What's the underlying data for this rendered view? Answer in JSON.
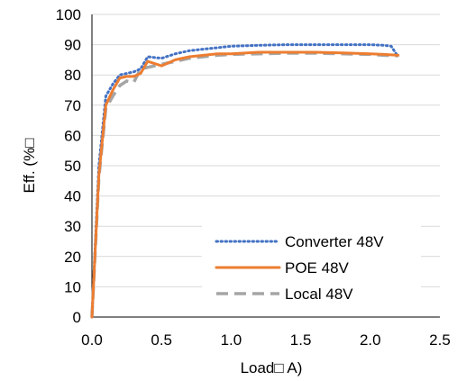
{
  "chart_data": {
    "type": "line",
    "title": "",
    "xlabel": "Load□ A)",
    "ylabel": "Eff. (%□",
    "xlim": [
      0,
      2.5
    ],
    "ylim": [
      0,
      100
    ],
    "x_ticks": [
      0,
      0.5,
      1.0,
      1.5,
      2.0,
      2.5
    ],
    "x_tick_labels": [
      "0.0",
      "0.5",
      "1.0",
      "1.5",
      "2.0",
      "2.5"
    ],
    "y_ticks": [
      0,
      10,
      20,
      30,
      40,
      50,
      60,
      70,
      80,
      90,
      100
    ],
    "y_tick_labels": [
      "0",
      "10",
      "20",
      "30",
      "40",
      "50",
      "60",
      "70",
      "80",
      "90",
      "100"
    ],
    "grid": "horizontal",
    "legend_position": "bottom-right",
    "series": [
      {
        "name": "Converter 48V",
        "color": "#4472c4",
        "style": "dotted",
        "x": [
          0,
          0.05,
          0.1,
          0.15,
          0.2,
          0.25,
          0.3,
          0.35,
          0.4,
          0.5,
          0.6,
          0.7,
          0.8,
          0.9,
          1.0,
          1.2,
          1.4,
          1.6,
          1.8,
          2.0,
          2.1,
          2.15,
          2.2
        ],
        "values": [
          0,
          50,
          73,
          77,
          80,
          80.5,
          81,
          82,
          86,
          85.5,
          87,
          88,
          88.5,
          89,
          89.5,
          89.8,
          90,
          90,
          90,
          90,
          89.8,
          89.5,
          86
        ]
      },
      {
        "name": "POE 48V",
        "color": "#ed7d31",
        "style": "solid",
        "x": [
          0,
          0.05,
          0.1,
          0.15,
          0.2,
          0.25,
          0.3,
          0.35,
          0.4,
          0.5,
          0.6,
          0.7,
          0.8,
          0.9,
          1.0,
          1.2,
          1.4,
          1.6,
          1.8,
          2.0,
          2.1,
          2.2
        ],
        "values": [
          0,
          47,
          70,
          75,
          79,
          79.5,
          79.5,
          80.5,
          84.5,
          83,
          85,
          86,
          86.5,
          87,
          87,
          87.5,
          87.5,
          87.5,
          87.3,
          87,
          86.8,
          86.5
        ]
      },
      {
        "name": "Local 48V",
        "color": "#a5a5a5",
        "style": "dashed",
        "x": [
          0,
          0.05,
          0.1,
          0.15,
          0.2,
          0.25,
          0.3,
          0.35,
          0.4,
          0.5,
          0.6,
          0.7,
          0.8,
          0.9,
          1.0,
          1.2,
          1.4,
          1.6,
          1.8,
          2.0,
          2.1,
          2.2
        ],
        "values": [
          0,
          46,
          69,
          73,
          76.5,
          78,
          77.5,
          82,
          82.5,
          83.5,
          84.5,
          85.5,
          86,
          86.5,
          86.8,
          87,
          87.2,
          87.2,
          87,
          86.8,
          86.5,
          86.3
        ]
      }
    ]
  }
}
